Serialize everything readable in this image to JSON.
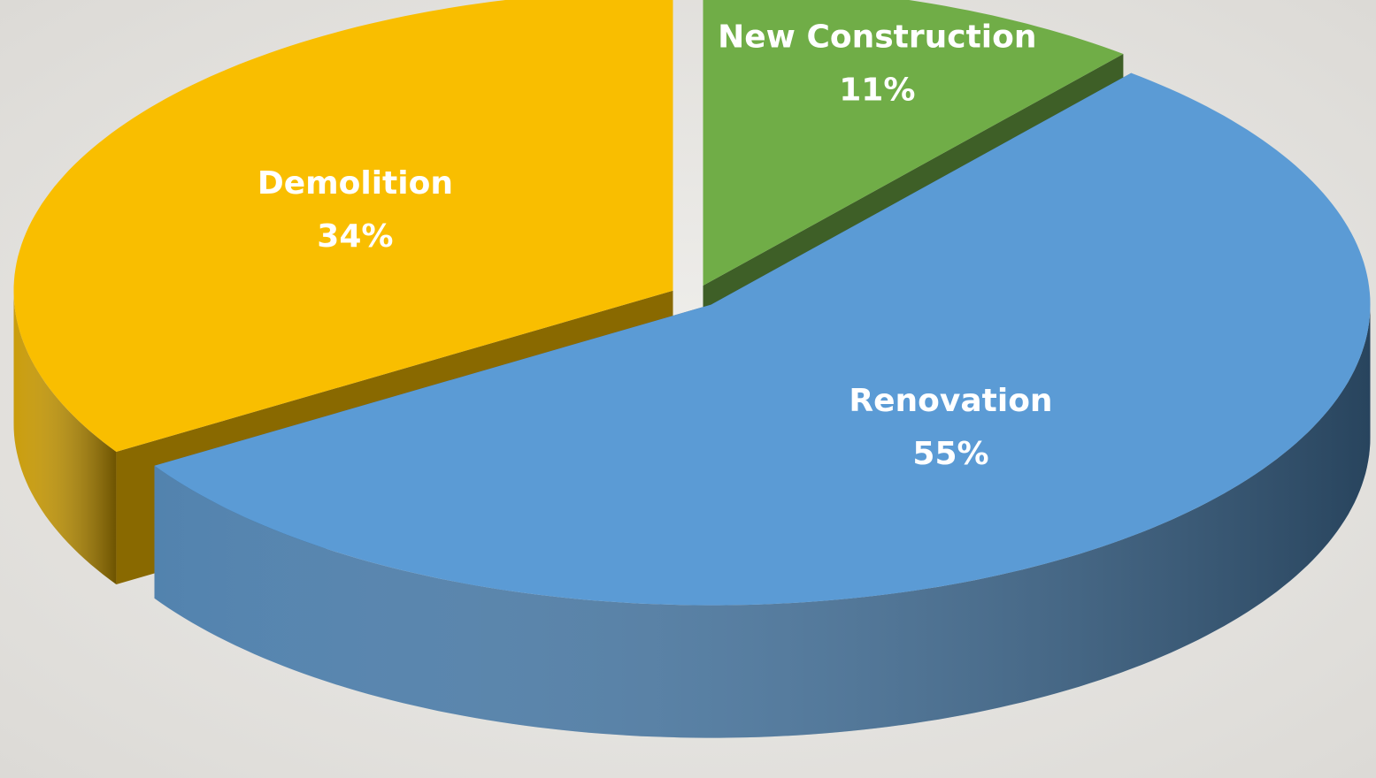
{
  "chart_data": {
    "type": "pie",
    "categories": [
      "New Construction",
      "Renovation",
      "Demolition"
    ],
    "values": [
      11,
      55,
      34
    ],
    "value_labels": [
      "11%",
      "55%",
      "34%"
    ],
    "colors": [
      "#70ad47",
      "#5b9bd5",
      "#f9be00"
    ]
  }
}
